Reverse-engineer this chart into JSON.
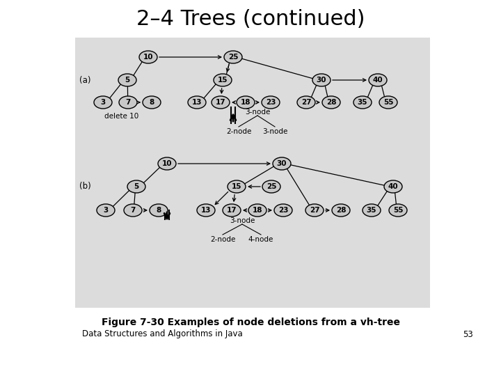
{
  "title": "2–4 Trees (continued)",
  "title_fontsize": 22,
  "bg_color": "#dcdcdc",
  "node_fill": "#c8c8c8",
  "node_edge": "#000000",
  "fig_bg": "#ffffff",
  "caption": "Figure 7-30 Examples of node deletions from a vh-tree",
  "footer": "Data Structures and Algorithms in Java",
  "page_num": "53",
  "section_a_label": "(a)",
  "section_b_label": "(b)"
}
